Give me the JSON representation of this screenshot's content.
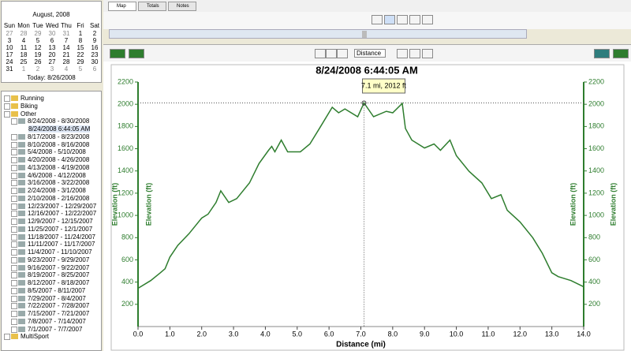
{
  "calendar": {
    "title": "August, 2008",
    "weekdays": [
      "Sun",
      "Mon",
      "Tue",
      "Wed",
      "Thu",
      "Fri",
      "Sat"
    ],
    "weeks": [
      [
        27,
        28,
        29,
        30,
        31,
        1,
        2
      ],
      [
        3,
        4,
        5,
        6,
        7,
        8,
        9
      ],
      [
        10,
        11,
        12,
        13,
        14,
        15,
        16
      ],
      [
        17,
        18,
        19,
        20,
        21,
        22,
        23
      ],
      [
        24,
        25,
        26,
        27,
        28,
        29,
        30
      ],
      [
        31,
        1,
        2,
        3,
        4,
        5,
        6
      ]
    ],
    "today": "Today: 8/26/2008"
  },
  "tree": {
    "running": "Running",
    "biking": "Biking",
    "other": {
      "label": "Other",
      "items": [
        {
          "label": "8/24/2008 - 8/30/2008",
          "children": [
            "8/24/2008 6:44:05 AM"
          ]
        },
        {
          "label": "8/17/2008 - 8/23/2008"
        },
        {
          "label": "8/10/2008 - 8/16/2008"
        },
        {
          "label": "5/4/2008 - 5/10/2008"
        },
        {
          "label": "4/20/2008 - 4/26/2008"
        },
        {
          "label": "4/13/2008 - 4/19/2008"
        },
        {
          "label": "4/6/2008 - 4/12/2008"
        },
        {
          "label": "3/16/2008 - 3/22/2008"
        },
        {
          "label": "2/24/2008 - 3/1/2008"
        },
        {
          "label": "2/10/2008 - 2/16/2008"
        },
        {
          "label": "12/23/2007 - 12/29/2007"
        },
        {
          "label": "12/16/2007 - 12/22/2007"
        },
        {
          "label": "12/9/2007 - 12/15/2007"
        },
        {
          "label": "11/25/2007 - 12/1/2007"
        },
        {
          "label": "11/18/2007 - 11/24/2007"
        },
        {
          "label": "11/11/2007 - 11/17/2007"
        },
        {
          "label": "11/4/2007 - 11/10/2007"
        },
        {
          "label": "9/23/2007 - 9/29/2007"
        },
        {
          "label": "9/16/2007 - 9/22/2007"
        },
        {
          "label": "8/19/2007 - 8/25/2007"
        },
        {
          "label": "8/12/2007 - 8/18/2007"
        },
        {
          "label": "8/5/2007 - 8/11/2007"
        },
        {
          "label": "7/29/2007 - 8/4/2007"
        },
        {
          "label": "7/22/2007 - 7/28/2007"
        },
        {
          "label": "7/15/2007 - 7/21/2007"
        },
        {
          "label": "7/8/2007 - 7/14/2007"
        },
        {
          "label": "7/1/2007 - 7/7/2007"
        }
      ]
    },
    "multisport": "MultiSport"
  },
  "tabs": [
    "Map",
    "Totals",
    "Notes"
  ],
  "chart_toolbar": {
    "x_axis_select": "Distance"
  },
  "chart_data": {
    "type": "line",
    "title": "8/24/2008 6:44:05 AM",
    "xlabel": "Distance (mi)",
    "ylabel": "Elevation (ft)",
    "y2label": "Elevation (ft)",
    "color": "#2e7d2e",
    "x": [
      0,
      0.4,
      0.7,
      0.85,
      1.0,
      1.25,
      1.6,
      2.0,
      2.2,
      2.45,
      2.6,
      2.85,
      3.1,
      3.5,
      3.8,
      4.1,
      4.2,
      4.3,
      4.5,
      4.7,
      5.1,
      5.4,
      5.7,
      6.1,
      6.3,
      6.5,
      6.9,
      7.1,
      7.4,
      7.8,
      8.0,
      8.3,
      8.4,
      8.6,
      9.0,
      9.3,
      9.5,
      9.8,
      10.0,
      10.4,
      10.8,
      11.1,
      11.4,
      11.6,
      12.0,
      12.4,
      12.7,
      13.0,
      13.2,
      13.6,
      14.0
    ],
    "values": [
      344,
      414,
      484,
      520,
      625,
      730,
      835,
      976,
      1011,
      1116,
      1221,
      1116,
      1151,
      1292,
      1467,
      1586,
      1621,
      1572,
      1678,
      1572,
      1572,
      1643,
      1783,
      1973,
      1923,
      1958,
      1888,
      2012,
      1888,
      1937,
      1923,
      2008,
      1783,
      1678,
      1607,
      1643,
      1586,
      1678,
      1537,
      1397,
      1292,
      1151,
      1186,
      1046,
      941,
      800,
      660,
      484,
      449,
      414,
      358
    ],
    "xlim": [
      0,
      14
    ],
    "ylim": [
      0,
      2200
    ],
    "y2lim": [
      0,
      2200
    ],
    "xticks": [
      {
        "value": 0,
        "label": "0.0"
      },
      {
        "value": 1,
        "label": "1.0"
      },
      {
        "value": 2,
        "label": "2.0"
      },
      {
        "value": 3,
        "label": "3.0"
      },
      {
        "value": 4,
        "label": "4.0"
      },
      {
        "value": 5,
        "label": "5.0"
      },
      {
        "value": 6,
        "label": "6.0"
      },
      {
        "value": 7,
        "label": "7.0"
      },
      {
        "value": 8,
        "label": "8.0"
      },
      {
        "value": 9,
        "label": "9.0"
      },
      {
        "value": 10,
        "label": "10.0"
      },
      {
        "value": 11,
        "label": "11.0"
      },
      {
        "value": 12,
        "label": "12.0"
      },
      {
        "value": 13,
        "label": "13.0"
      },
      {
        "value": 14,
        "label": "14.0"
      }
    ],
    "yticks": [
      200,
      400,
      600,
      800,
      1000,
      1200,
      1400,
      1600,
      1800,
      2000,
      2200
    ],
    "y2ticks": [
      200,
      400,
      600,
      800,
      1000,
      1200,
      1400,
      1600,
      1800,
      2000,
      2200
    ],
    "annotation": {
      "text": "7.1 mi, 2012 ft",
      "x": 7.1,
      "y": 2012
    }
  }
}
